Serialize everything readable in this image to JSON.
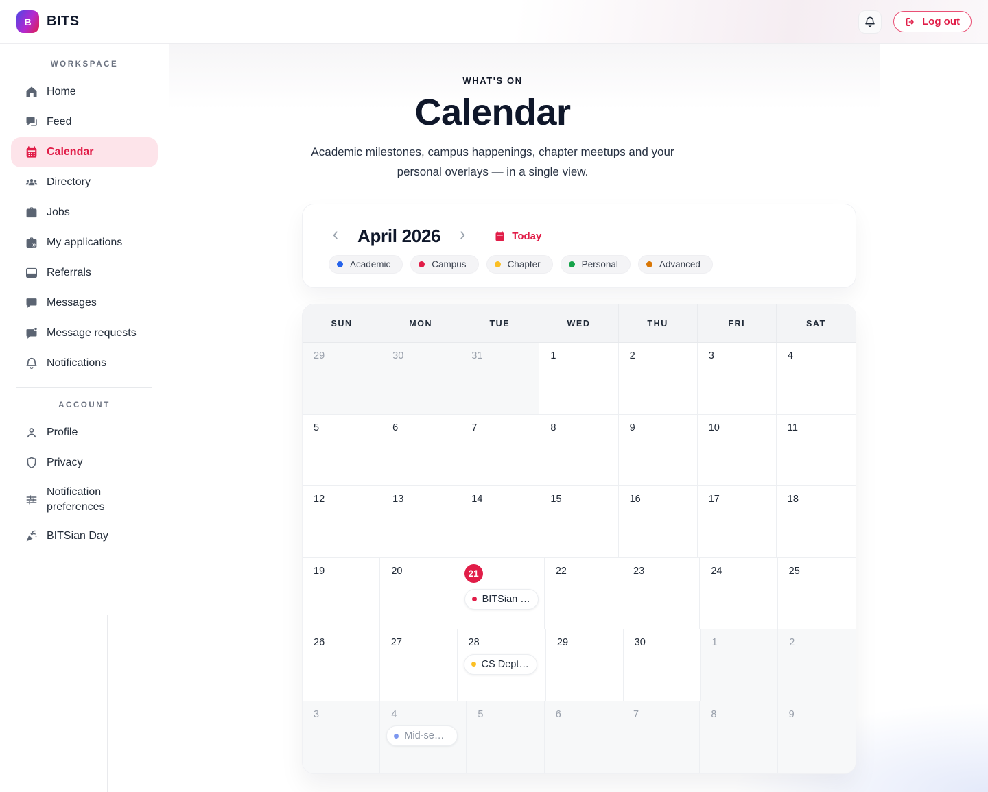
{
  "brand": {
    "name": "BITS",
    "logo_letter": "B"
  },
  "header": {
    "logout_label": "Log out"
  },
  "sidebar": {
    "workspace_label": "WORKSPACE",
    "account_label": "ACCOUNT",
    "workspace_items": [
      {
        "label": "Home",
        "icon": "home",
        "active": false
      },
      {
        "label": "Feed",
        "icon": "feed",
        "active": false
      },
      {
        "label": "Calendar",
        "icon": "calendar",
        "active": true
      },
      {
        "label": "Directory",
        "icon": "people",
        "active": false
      },
      {
        "label": "Jobs",
        "icon": "briefcase",
        "active": false
      },
      {
        "label": "My applications",
        "icon": "briefcase-clock",
        "active": false
      },
      {
        "label": "Referrals",
        "icon": "window",
        "active": false
      },
      {
        "label": "Messages",
        "icon": "chat",
        "active": false
      },
      {
        "label": "Message requests",
        "icon": "chat-dot",
        "active": false
      },
      {
        "label": "Notifications",
        "icon": "bell",
        "active": false
      }
    ],
    "account_items": [
      {
        "label": "Profile",
        "icon": "person",
        "active": false
      },
      {
        "label": "Privacy",
        "icon": "shield",
        "active": false
      },
      {
        "label": "Notification preferences",
        "icon": "sliders",
        "active": false
      },
      {
        "label": "BITSian Day",
        "icon": "party",
        "active": false
      }
    ]
  },
  "hero": {
    "eyebrow": "WHAT'S ON",
    "title": "Calendar",
    "subtitle": "Academic milestones, campus happenings, chapter meetups and your personal overlays — in a single view."
  },
  "controls": {
    "month_label": "April 2026",
    "today_label": "Today",
    "legend": [
      {
        "label": "Academic",
        "color": "#2563eb"
      },
      {
        "label": "Campus",
        "color": "#e11d48"
      },
      {
        "label": "Chapter",
        "color": "#fbbf24"
      },
      {
        "label": "Personal",
        "color": "#16a34a"
      },
      {
        "label": "Advanced",
        "color": "#d97706"
      }
    ]
  },
  "calendar": {
    "weekdays": [
      "SUN",
      "MON",
      "TUE",
      "WED",
      "THU",
      "FRI",
      "SAT"
    ],
    "weeks": [
      [
        {
          "day": "29",
          "muted": true
        },
        {
          "day": "30",
          "muted": true
        },
        {
          "day": "31",
          "muted": true
        },
        {
          "day": "1"
        },
        {
          "day": "2"
        },
        {
          "day": "3"
        },
        {
          "day": "4"
        }
      ],
      [
        {
          "day": "5"
        },
        {
          "day": "6"
        },
        {
          "day": "7"
        },
        {
          "day": "8"
        },
        {
          "day": "9"
        },
        {
          "day": "10"
        },
        {
          "day": "11"
        }
      ],
      [
        {
          "day": "12"
        },
        {
          "day": "13"
        },
        {
          "day": "14"
        },
        {
          "day": "15"
        },
        {
          "day": "16"
        },
        {
          "day": "17"
        },
        {
          "day": "18"
        }
      ],
      [
        {
          "day": "19"
        },
        {
          "day": "20"
        },
        {
          "day": "21",
          "today": true,
          "event": {
            "label": "BITSian …",
            "dot": "#e11d48"
          }
        },
        {
          "day": "22"
        },
        {
          "day": "23"
        },
        {
          "day": "24"
        },
        {
          "day": "25"
        }
      ],
      [
        {
          "day": "26"
        },
        {
          "day": "27"
        },
        {
          "day": "28",
          "event": {
            "label": "CS Dept …",
            "dot": "#fbbf24"
          }
        },
        {
          "day": "29"
        },
        {
          "day": "30"
        },
        {
          "day": "1",
          "muted": true
        },
        {
          "day": "2",
          "muted": true
        }
      ],
      [
        {
          "day": "3",
          "muted": true
        },
        {
          "day": "4",
          "muted": true,
          "event": {
            "label": "Mid-sem…",
            "dot": "#7d97ef",
            "muted": true
          }
        },
        {
          "day": "5",
          "muted": true
        },
        {
          "day": "6",
          "muted": true
        },
        {
          "day": "7",
          "muted": true
        },
        {
          "day": "8",
          "muted": true
        },
        {
          "day": "9",
          "muted": true
        }
      ]
    ]
  },
  "colors": {
    "accent": "#e11d48",
    "active_item_bg": "#fde4ea",
    "muted_cell_bg": "#f7f8f9"
  }
}
